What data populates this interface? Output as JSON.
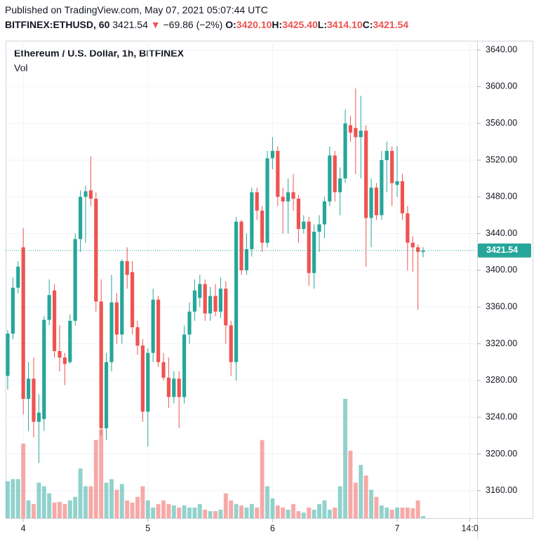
{
  "header": {
    "published": "Published on TradingView.com, May 07, 2021 05:07:44 UTC",
    "symbol": "BITFINEX:ETHUSD, 60",
    "price": "3421.54",
    "arrow": "▼",
    "change": "−69.86 (−2%)",
    "ohlc": [
      [
        "O:",
        "3420.10"
      ],
      [
        "H:",
        "3425.40"
      ],
      [
        "L:",
        "3414.10"
      ],
      [
        "C:",
        "3421.54"
      ]
    ]
  },
  "chart_data": {
    "type": "candlestick",
    "title": "Ethereum / U.S. Dollar, 1h, BITFINEX",
    "volume_label": "Vol",
    "up_color": "#26a69a",
    "down_color": "#ef5350",
    "grid": true,
    "open": [
      3285,
      3331,
      3381,
      3425,
      3260,
      3282,
      3235,
      3238,
      3346,
      3378,
      3312,
      3305,
      3300,
      3345,
      3434,
      3480,
      3487,
      3478,
      3366,
      3228,
      3300,
      3365,
      3330,
      3410,
      3398,
      3338,
      3318,
      3246,
      3310,
      3368,
      3300,
      3283,
      3262,
      3282,
      3262,
      3330,
      3355,
      3370,
      3385,
      3353,
      3372,
      3355,
      3380,
      3340,
      3300,
      3453,
      3400,
      3423,
      3485,
      3465,
      3430,
      3522,
      3530,
      3480,
      3475,
      3485,
      3478,
      3445,
      3453,
      3397,
      3442,
      3450,
      3475,
      3525,
      3485,
      3500,
      3558,
      3555,
      3545,
      3552,
      3457,
      3490,
      3460,
      3520,
      3530,
      3493,
      3497,
      3462,
      3430,
      3425,
      3420.1
    ],
    "high": [
      3335,
      3392,
      3410,
      3446,
      3300,
      3305,
      3265,
      3350,
      3390,
      3385,
      3340,
      3310,
      3352,
      3440,
      3487,
      3492,
      3524,
      3485,
      3390,
      3310,
      3395,
      3375,
      3412,
      3425,
      3410,
      3345,
      3325,
      3315,
      3380,
      3372,
      3310,
      3305,
      3290,
      3290,
      3340,
      3365,
      3390,
      3395,
      3390,
      3382,
      3385,
      3392,
      3388,
      3345,
      3458,
      3455,
      3440,
      3490,
      3490,
      3470,
      3530,
      3545,
      3535,
      3490,
      3500,
      3505,
      3482,
      3460,
      3458,
      3450,
      3460,
      3480,
      3535,
      3530,
      3512,
      3575,
      3568,
      3598,
      3590,
      3558,
      3500,
      3495,
      3530,
      3540,
      3535,
      3535,
      3505,
      3470,
      3437,
      3428,
      3425.4
    ],
    "low": [
      3270,
      3325,
      3375,
      3243,
      3225,
      3218,
      3190,
      3225,
      3340,
      3305,
      3290,
      3275,
      3298,
      3340,
      3420,
      3430,
      3470,
      3355,
      3220,
      3215,
      3290,
      3320,
      3320,
      3380,
      3330,
      3308,
      3235,
      3208,
      3300,
      3295,
      3280,
      3250,
      3255,
      3228,
      3255,
      3320,
      3345,
      3360,
      3345,
      3345,
      3350,
      3348,
      3320,
      3285,
      3280,
      3395,
      3395,
      3415,
      3455,
      3420,
      3425,
      3510,
      3470,
      3440,
      3440,
      3465,
      3430,
      3440,
      3383,
      3380,
      3420,
      3435,
      3470,
      3475,
      3460,
      3495,
      3540,
      3505,
      3500,
      3404,
      3425,
      3455,
      3455,
      3485,
      3470,
      3480,
      3455,
      3400,
      3398,
      3357,
      3414.1
    ],
    "close": [
      3331,
      3381,
      3404,
      3260,
      3282,
      3235,
      3245,
      3346,
      3373,
      3312,
      3305,
      3298,
      3345,
      3434,
      3480,
      3486,
      3478,
      3366,
      3228,
      3300,
      3365,
      3330,
      3410,
      3395,
      3338,
      3318,
      3246,
      3310,
      3368,
      3300,
      3283,
      3262,
      3282,
      3262,
      3330,
      3355,
      3378,
      3385,
      3353,
      3372,
      3355,
      3380,
      3340,
      3300,
      3453,
      3400,
      3423,
      3485,
      3465,
      3430,
      3522,
      3530,
      3480,
      3475,
      3485,
      3478,
      3445,
      3453,
      3397,
      3442,
      3450,
      3475,
      3525,
      3485,
      3500,
      3560,
      3550,
      3545,
      3552,
      3457,
      3490,
      3460,
      3520,
      3530,
      3495,
      3497,
      3462,
      3430,
      3425,
      3420,
      3421.54
    ],
    "volume": [
      52,
      55,
      55,
      105,
      25,
      20,
      50,
      45,
      35,
      22,
      23,
      20,
      25,
      30,
      70,
      45,
      45,
      110,
      125,
      50,
      55,
      40,
      48,
      25,
      22,
      30,
      45,
      25,
      15,
      20,
      25,
      20,
      18,
      15,
      18,
      15,
      15,
      20,
      12,
      10,
      10,
      12,
      35,
      25,
      20,
      18,
      15,
      20,
      15,
      110,
      45,
      28,
      18,
      15,
      12,
      20,
      10,
      8,
      15,
      12,
      20,
      25,
      12,
      15,
      45,
      168,
      95,
      50,
      75,
      60,
      40,
      30,
      18,
      15,
      12,
      15,
      15,
      15,
      14,
      25,
      3
    ],
    "ylim": [
      3130,
      3650
    ],
    "yticks": [
      {
        "value": 3160,
        "label": "3160.00"
      },
      {
        "value": 3200,
        "label": "3200.00"
      },
      {
        "value": 3240,
        "label": "3240.00"
      },
      {
        "value": 3280,
        "label": "3280.00"
      },
      {
        "value": 3320,
        "label": "3320.00"
      },
      {
        "value": 3360,
        "label": "3360.00"
      },
      {
        "value": 3400,
        "label": "3400.00"
      },
      {
        "value": 3440,
        "label": "3440.00"
      },
      {
        "value": 3480,
        "label": "3480.00"
      },
      {
        "value": 3520,
        "label": "3520.00"
      },
      {
        "value": 3560,
        "label": "3560.00"
      },
      {
        "value": 3600,
        "label": "3600.00"
      },
      {
        "value": 3640,
        "label": "3640.00"
      }
    ],
    "xlim": [
      -0.4,
      90.4
    ],
    "xticks": [
      {
        "value": 3,
        "label": "4"
      },
      {
        "value": 27,
        "label": "5"
      },
      {
        "value": 51,
        "label": "6"
      },
      {
        "value": 75,
        "label": "7"
      },
      {
        "value": 89,
        "label": "14:0"
      }
    ],
    "last_price": {
      "value": 3421.54,
      "label": "3421.54"
    }
  }
}
